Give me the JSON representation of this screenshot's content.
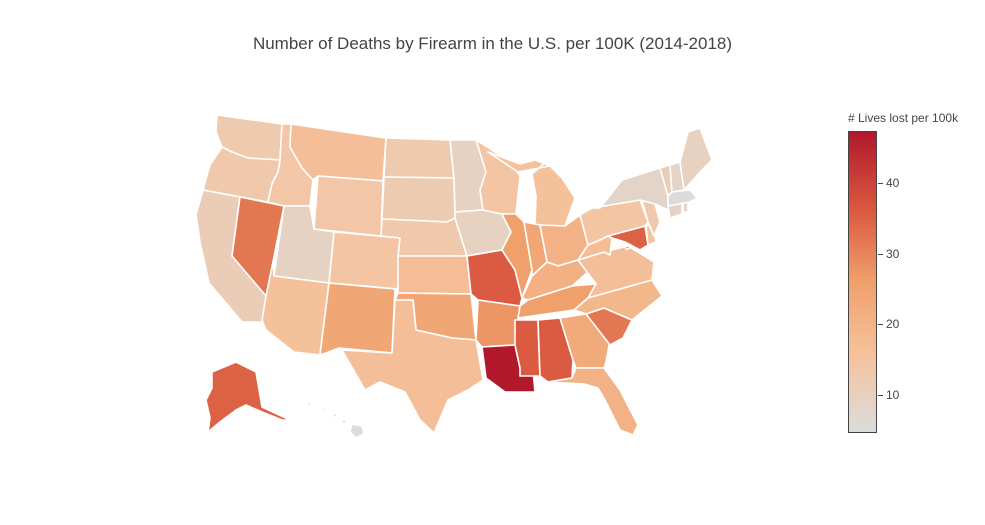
{
  "title": "Number of Deaths by Firearm in the U.S. per 100K (2014-2018)",
  "colorbar": {
    "title": "# Lives lost per 100k",
    "min": 4.6,
    "max": 47.4,
    "ticks": [
      10,
      20,
      30,
      40
    ],
    "colorscale": [
      "#dcdcdc",
      "#f5c39e",
      "#f0a06b",
      "#d8563e",
      "#b2182b"
    ]
  },
  "chart_data": {
    "type": "choropleth",
    "values": {
      "WA": 12.3,
      "OR": 13.0,
      "CA": 11.0,
      "NV": 32.0,
      "ID": 14.0,
      "MT": 16.5,
      "WY": 14.0,
      "UT": 9.0,
      "CO": 14.5,
      "AZ": 16.0,
      "NM": 24.0,
      "ND": 12.5,
      "SD": 12.0,
      "NE": 13.0,
      "KS": 17.0,
      "OK": 24.0,
      "TX": 16.5,
      "MN": 9.5,
      "IA": 9.5,
      "MO": 36.0,
      "AR": 27.5,
      "LA": 47.4,
      "WI": 14.5,
      "IL": 26.0,
      "MI": 16.0,
      "IN": 24.0,
      "OH": 20.5,
      "KY": 21.0,
      "TN": 26.0,
      "MS": 36.0,
      "AL": 36.0,
      "GA": 23.0,
      "FL": 20.5,
      "SC": 32.0,
      "NC": 19.0,
      "VA": 16.5,
      "WV": 17.0,
      "MD": 35.0,
      "DE": 15.0,
      "PA": 14.5,
      "NJ": 13.0,
      "NY": 8.0,
      "CT": 8.0,
      "RI": 7.0,
      "MA": 5.0,
      "VT": 11.0,
      "NH": 8.0,
      "ME": 9.5,
      "AK": 35.0,
      "HI": 4.6,
      "DC": 35.0
    }
  }
}
